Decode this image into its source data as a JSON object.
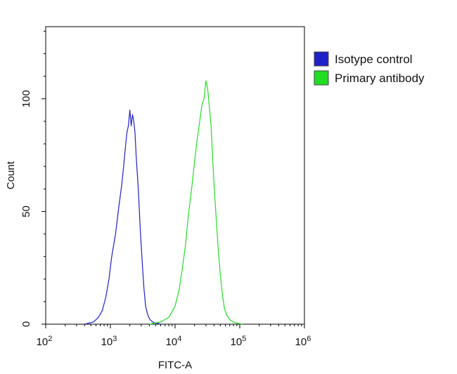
{
  "chart_data": {
    "type": "line",
    "title": "",
    "xlabel": "FITC-A",
    "ylabel": "Count",
    "x_scale": "log",
    "xlim": [
      100,
      1000000
    ],
    "ylim": [
      0,
      132
    ],
    "x_ticks": [
      {
        "value": 100,
        "base": "10",
        "exp": "2"
      },
      {
        "value": 1000,
        "base": "10",
        "exp": "3"
      },
      {
        "value": 10000,
        "base": "10",
        "exp": "4"
      },
      {
        "value": 100000,
        "base": "10",
        "exp": "5"
      },
      {
        "value": 1000000,
        "base": "10",
        "exp": "6"
      }
    ],
    "y_ticks": [
      0,
      50,
      100
    ],
    "grid": false,
    "legend_position": "right",
    "series": [
      {
        "name": "Isotype control",
        "color": "#2020c8",
        "x": [
          400,
          550,
          650,
          750,
          850,
          950,
          1050,
          1200,
          1350,
          1500,
          1600,
          1700,
          1800,
          1900,
          2000,
          2100,
          2200,
          2300,
          2400,
          2500,
          2700,
          2900,
          3100,
          3300,
          3500,
          3800,
          4100,
          4500,
          5000,
          5500,
          6000
        ],
        "y": [
          0,
          1,
          3,
          6,
          12,
          20,
          30,
          40,
          52,
          62,
          70,
          78,
          85,
          88,
          95,
          88,
          93,
          90,
          85,
          75,
          60,
          42,
          28,
          16,
          8,
          4,
          2,
          1,
          0.5,
          0.3,
          0
        ]
      },
      {
        "name": "Primary antibody",
        "color": "#22dd22",
        "x": [
          4000,
          6000,
          8000,
          10000,
          11500,
          13000,
          14500,
          16000,
          18000,
          20000,
          22000,
          24000,
          26000,
          28000,
          30000,
          32000,
          34000,
          36000,
          38000,
          40000,
          43000,
          46000,
          50000,
          54000,
          58000,
          63000,
          70000,
          80000,
          90000,
          110000
        ],
        "y": [
          0,
          1,
          3,
          8,
          15,
          25,
          35,
          48,
          60,
          72,
          82,
          90,
          97,
          100,
          108,
          104,
          96,
          88,
          75,
          62,
          48,
          35,
          22,
          13,
          7,
          4,
          2,
          1,
          0.5,
          0
        ]
      }
    ]
  }
}
